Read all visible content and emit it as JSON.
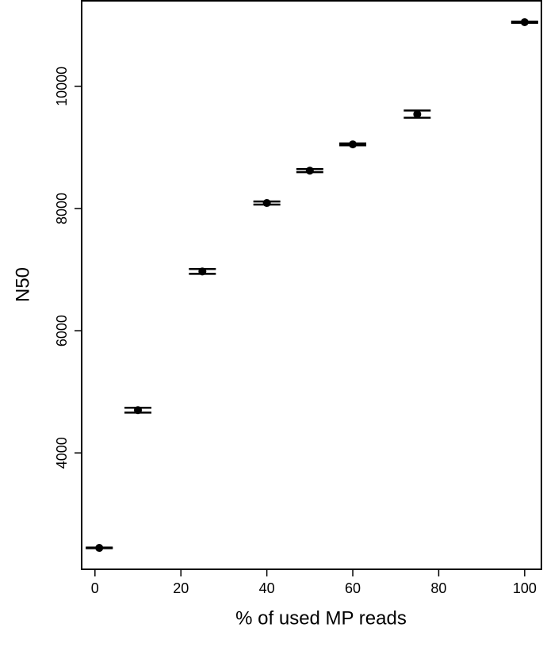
{
  "chart_data": {
    "type": "scatter",
    "x_label": "% of used MP reads",
    "y_label": "N50",
    "x": [
      1,
      10,
      25,
      40,
      50,
      60,
      75,
      100
    ],
    "values": [
      2445,
      4700,
      6970,
      8090,
      8620,
      9050,
      9545,
      11050
    ],
    "errors": [
      5,
      40,
      40,
      25,
      25,
      15,
      60,
      10
    ],
    "color": "#000000",
    "xlim": [
      -3.1,
      103.9
    ],
    "xticks": [
      0,
      20,
      40,
      60,
      80,
      100
    ],
    "ylim": [
      2095,
      11400
    ],
    "yticks": [
      4000,
      6000,
      8000,
      10000
    ]
  }
}
